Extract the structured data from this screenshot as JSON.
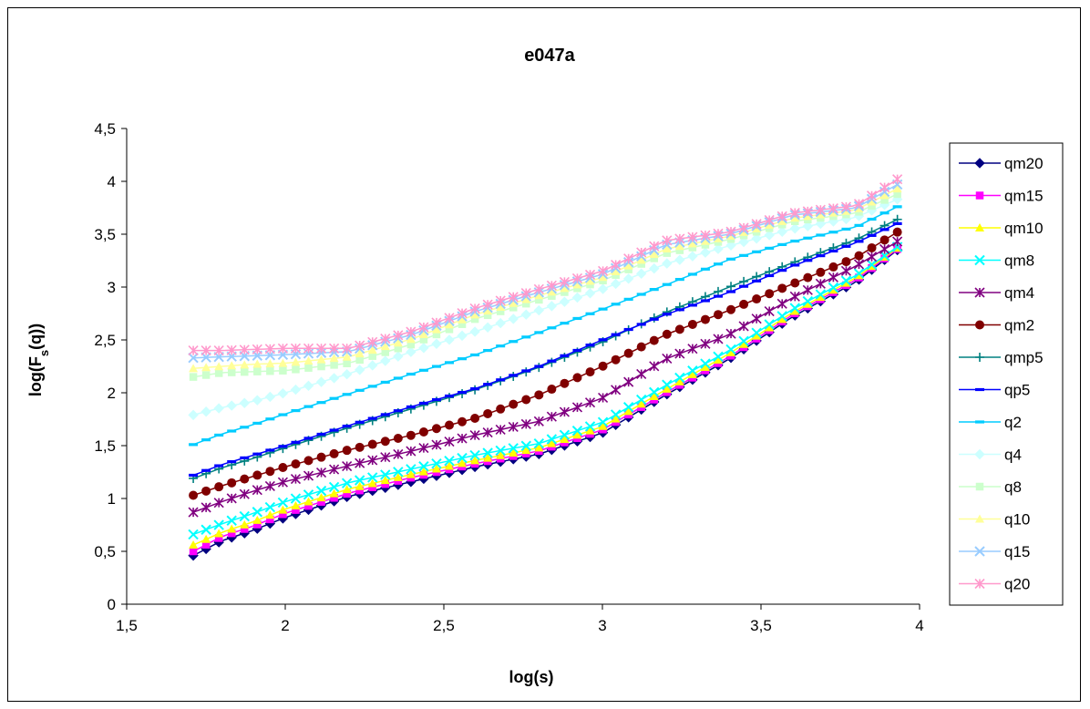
{
  "chart_data": {
    "type": "scatter",
    "title": "e047a",
    "xlabel": "log(s)",
    "ylabel_main": "log(F",
    "ylabel_sub": "s",
    "ylabel_end": "(q))",
    "xlim": [
      1.5,
      4
    ],
    "ylim": [
      0,
      4.5
    ],
    "x_ticks": [
      1.5,
      2,
      2.5,
      3,
      3.5,
      4
    ],
    "y_ticks": [
      0,
      0.5,
      1,
      1.5,
      2,
      2.5,
      3,
      3.5,
      4,
      4.5
    ],
    "x_tick_labels": [
      "1,5",
      "2",
      "2,5",
      "3",
      "3,5",
      "4"
    ],
    "y_tick_labels": [
      "0",
      "0,5",
      "1",
      "1,5",
      "2",
      "2,5",
      "3",
      "3,5",
      "4",
      "4,5"
    ],
    "grid": false,
    "legend_position": "right",
    "series": [
      {
        "name": "qm20",
        "color": "#000080",
        "marker": "diamond",
        "points": [
          [
            1.71,
            0.46
          ],
          [
            1.8,
            0.6
          ],
          [
            1.9,
            0.7
          ],
          [
            2.0,
            0.82
          ],
          [
            2.2,
            1.02
          ],
          [
            2.4,
            1.16
          ],
          [
            2.6,
            1.3
          ],
          [
            2.8,
            1.42
          ],
          [
            3.0,
            1.62
          ],
          [
            3.2,
            1.98
          ],
          [
            3.4,
            2.32
          ],
          [
            3.6,
            2.72
          ],
          [
            3.8,
            3.05
          ],
          [
            3.93,
            3.35
          ]
        ]
      },
      {
        "name": "qm15",
        "color": "#FF00FF",
        "marker": "square",
        "points": [
          [
            1.71,
            0.5
          ],
          [
            1.8,
            0.64
          ],
          [
            1.9,
            0.74
          ],
          [
            2.0,
            0.86
          ],
          [
            2.2,
            1.05
          ],
          [
            2.4,
            1.2
          ],
          [
            2.6,
            1.33
          ],
          [
            2.8,
            1.45
          ],
          [
            3.0,
            1.65
          ],
          [
            3.2,
            2.0
          ],
          [
            3.4,
            2.34
          ],
          [
            3.6,
            2.74
          ],
          [
            3.8,
            3.07
          ],
          [
            3.93,
            3.36
          ]
        ]
      },
      {
        "name": "qm10",
        "color": "#FFFF00",
        "marker": "triangle",
        "points": [
          [
            1.71,
            0.56
          ],
          [
            1.8,
            0.68
          ],
          [
            1.9,
            0.78
          ],
          [
            2.0,
            0.9
          ],
          [
            2.2,
            1.09
          ],
          [
            2.4,
            1.23
          ],
          [
            2.6,
            1.36
          ],
          [
            2.8,
            1.48
          ],
          [
            3.0,
            1.68
          ],
          [
            3.2,
            2.03
          ],
          [
            3.4,
            2.37
          ],
          [
            3.6,
            2.76
          ],
          [
            3.8,
            3.09
          ],
          [
            3.93,
            3.37
          ]
        ]
      },
      {
        "name": "qm8",
        "color": "#00FFFF",
        "marker": "x",
        "points": [
          [
            1.71,
            0.66
          ],
          [
            1.8,
            0.76
          ],
          [
            1.9,
            0.86
          ],
          [
            2.0,
            0.97
          ],
          [
            2.2,
            1.15
          ],
          [
            2.4,
            1.28
          ],
          [
            2.6,
            1.41
          ],
          [
            2.8,
            1.52
          ],
          [
            3.0,
            1.72
          ],
          [
            3.2,
            2.07
          ],
          [
            3.4,
            2.4
          ],
          [
            3.6,
            2.79
          ],
          [
            3.8,
            3.11
          ],
          [
            3.93,
            3.38
          ]
        ]
      },
      {
        "name": "qm4",
        "color": "#800080",
        "marker": "star",
        "points": [
          [
            1.71,
            0.87
          ],
          [
            1.8,
            0.97
          ],
          [
            1.9,
            1.07
          ],
          [
            2.0,
            1.16
          ],
          [
            2.2,
            1.31
          ],
          [
            2.4,
            1.45
          ],
          [
            2.6,
            1.6
          ],
          [
            2.8,
            1.73
          ],
          [
            3.0,
            1.95
          ],
          [
            3.2,
            2.32
          ],
          [
            3.4,
            2.55
          ],
          [
            3.6,
            2.9
          ],
          [
            3.8,
            3.2
          ],
          [
            3.93,
            3.43
          ]
        ]
      },
      {
        "name": "qm2",
        "color": "#800000",
        "marker": "circle",
        "points": [
          [
            1.71,
            1.03
          ],
          [
            1.8,
            1.12
          ],
          [
            1.9,
            1.21
          ],
          [
            2.0,
            1.3
          ],
          [
            2.2,
            1.46
          ],
          [
            2.4,
            1.6
          ],
          [
            2.6,
            1.76
          ],
          [
            2.8,
            1.98
          ],
          [
            3.0,
            2.25
          ],
          [
            3.2,
            2.55
          ],
          [
            3.4,
            2.78
          ],
          [
            3.6,
            3.03
          ],
          [
            3.8,
            3.28
          ],
          [
            3.93,
            3.52
          ]
        ]
      },
      {
        "name": "qmp5",
        "color": "#008080",
        "marker": "plus",
        "points": [
          [
            1.71,
            1.19
          ],
          [
            1.8,
            1.29
          ],
          [
            1.9,
            1.38
          ],
          [
            2.0,
            1.48
          ],
          [
            2.2,
            1.67
          ],
          [
            2.4,
            1.85
          ],
          [
            2.6,
            2.03
          ],
          [
            2.8,
            2.24
          ],
          [
            3.0,
            2.48
          ],
          [
            3.2,
            2.76
          ],
          [
            3.4,
            3.0
          ],
          [
            3.6,
            3.23
          ],
          [
            3.8,
            3.45
          ],
          [
            3.93,
            3.64
          ]
        ]
      },
      {
        "name": "qp5",
        "color": "#0000FF",
        "marker": "dash",
        "points": [
          [
            1.71,
            1.22
          ],
          [
            1.8,
            1.32
          ],
          [
            1.9,
            1.41
          ],
          [
            2.0,
            1.5
          ],
          [
            2.2,
            1.69
          ],
          [
            2.4,
            1.87
          ],
          [
            2.6,
            2.04
          ],
          [
            2.8,
            2.25
          ],
          [
            3.0,
            2.5
          ],
          [
            3.2,
            2.74
          ],
          [
            3.4,
            2.95
          ],
          [
            3.6,
            3.2
          ],
          [
            3.8,
            3.42
          ],
          [
            3.93,
            3.6
          ]
        ]
      },
      {
        "name": "q2",
        "color": "#00CCFF",
        "marker": "dash",
        "points": [
          [
            1.71,
            1.51
          ],
          [
            1.8,
            1.61
          ],
          [
            1.9,
            1.7
          ],
          [
            2.0,
            1.8
          ],
          [
            2.2,
            1.99
          ],
          [
            2.4,
            2.18
          ],
          [
            2.6,
            2.36
          ],
          [
            2.8,
            2.57
          ],
          [
            3.0,
            2.79
          ],
          [
            3.2,
            3.02
          ],
          [
            3.4,
            3.26
          ],
          [
            3.6,
            3.43
          ],
          [
            3.8,
            3.57
          ],
          [
            3.93,
            3.76
          ]
        ]
      },
      {
        "name": "q4",
        "color": "#CCFFFF",
        "marker": "diamond",
        "points": [
          [
            1.71,
            1.79
          ],
          [
            1.8,
            1.86
          ],
          [
            1.9,
            1.92
          ],
          [
            2.0,
            2.0
          ],
          [
            2.2,
            2.18
          ],
          [
            2.4,
            2.39
          ],
          [
            2.6,
            2.58
          ],
          [
            2.8,
            2.78
          ],
          [
            3.0,
            2.98
          ],
          [
            3.2,
            3.22
          ],
          [
            3.4,
            3.39
          ],
          [
            3.6,
            3.55
          ],
          [
            3.8,
            3.66
          ],
          [
            3.93,
            3.83
          ]
        ]
      },
      {
        "name": "q8",
        "color": "#CCFFCC",
        "marker": "square",
        "points": [
          [
            1.71,
            2.15
          ],
          [
            1.8,
            2.19
          ],
          [
            1.9,
            2.2
          ],
          [
            2.0,
            2.21
          ],
          [
            2.2,
            2.28
          ],
          [
            2.4,
            2.46
          ],
          [
            2.6,
            2.7
          ],
          [
            2.8,
            2.88
          ],
          [
            3.0,
            3.06
          ],
          [
            3.2,
            3.32
          ],
          [
            3.4,
            3.45
          ],
          [
            3.6,
            3.62
          ],
          [
            3.8,
            3.7
          ],
          [
            3.93,
            3.88
          ]
        ]
      },
      {
        "name": "q10",
        "color": "#FFFF99",
        "marker": "triangle",
        "points": [
          [
            1.71,
            2.23
          ],
          [
            1.8,
            2.25
          ],
          [
            1.9,
            2.27
          ],
          [
            2.0,
            2.28
          ],
          [
            2.2,
            2.34
          ],
          [
            2.4,
            2.51
          ],
          [
            2.6,
            2.74
          ],
          [
            2.8,
            2.92
          ],
          [
            3.0,
            3.09
          ],
          [
            3.2,
            3.36
          ],
          [
            3.4,
            3.48
          ],
          [
            3.6,
            3.65
          ],
          [
            3.8,
            3.73
          ],
          [
            3.93,
            3.93
          ]
        ]
      },
      {
        "name": "q15",
        "color": "#99CCFF",
        "marker": "x",
        "points": [
          [
            1.71,
            2.33
          ],
          [
            1.8,
            2.34
          ],
          [
            1.9,
            2.35
          ],
          [
            2.0,
            2.36
          ],
          [
            2.2,
            2.39
          ],
          [
            2.4,
            2.55
          ],
          [
            2.6,
            2.77
          ],
          [
            2.8,
            2.95
          ],
          [
            3.0,
            3.12
          ],
          [
            3.2,
            3.4
          ],
          [
            3.4,
            3.5
          ],
          [
            3.6,
            3.68
          ],
          [
            3.8,
            3.75
          ],
          [
            3.93,
            3.97
          ]
        ]
      },
      {
        "name": "q20",
        "color": "#FF99CC",
        "marker": "star",
        "points": [
          [
            1.71,
            2.4
          ],
          [
            1.8,
            2.4
          ],
          [
            1.9,
            2.41
          ],
          [
            2.0,
            2.42
          ],
          [
            2.2,
            2.42
          ],
          [
            2.4,
            2.58
          ],
          [
            2.6,
            2.8
          ],
          [
            2.8,
            2.98
          ],
          [
            3.0,
            3.15
          ],
          [
            3.2,
            3.44
          ],
          [
            3.4,
            3.52
          ],
          [
            3.6,
            3.7
          ],
          [
            3.8,
            3.77
          ],
          [
            3.93,
            4.02
          ]
        ]
      }
    ]
  }
}
